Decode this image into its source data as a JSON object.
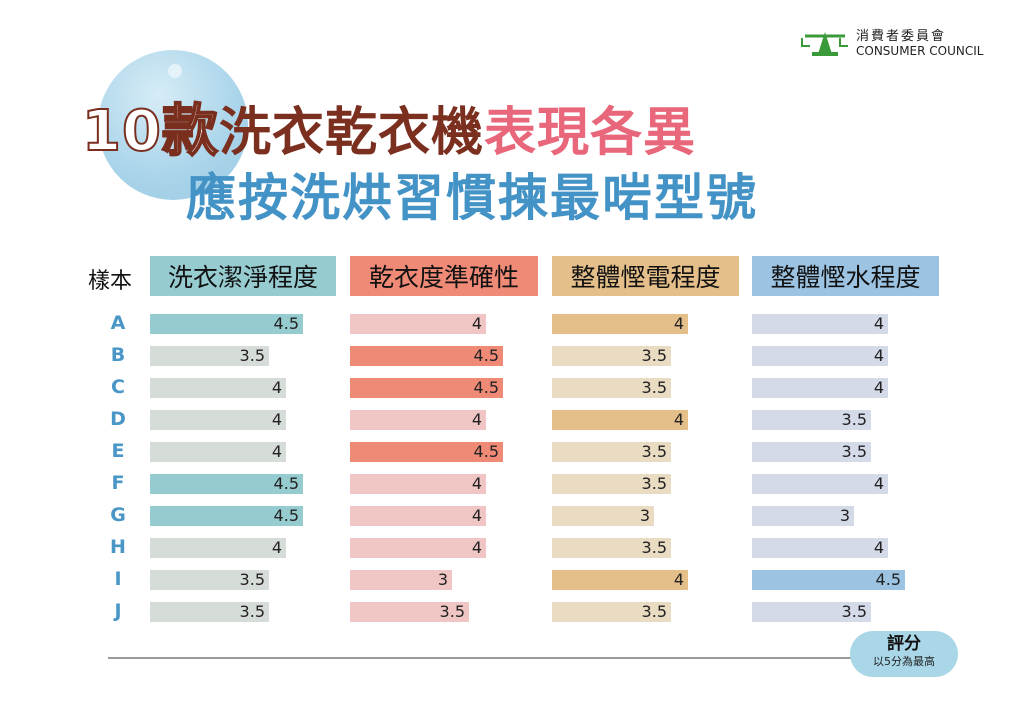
{
  "logo": {
    "zh": "消費者委員會",
    "en": "CONSUMER COUNCIL"
  },
  "title": {
    "num": "10款",
    "part1": "洗衣乾衣機",
    "part2": "表現各異",
    "line2": "應按洗烘習慣揀最啱型號"
  },
  "chart_data": {
    "type": "bar",
    "row_header": "樣本",
    "categories": [
      "A",
      "B",
      "C",
      "D",
      "E",
      "F",
      "G",
      "H",
      "I",
      "J"
    ],
    "series": [
      {
        "name": "洗衣潔淨程度",
        "values": [
          4.5,
          3.5,
          4,
          4,
          4,
          4.5,
          4.5,
          4,
          3.5,
          3.5
        ],
        "color": "#96cbd0",
        "light": "#d6ddd8"
      },
      {
        "name": "乾衣度準確性",
        "values": [
          4,
          4.5,
          4.5,
          4,
          4.5,
          4,
          4,
          4,
          3,
          3.5
        ],
        "color": "#ef8a77",
        "light": "#efc6c4"
      },
      {
        "name": "整體慳電程度",
        "values": [
          4,
          3.5,
          3.5,
          4,
          3.5,
          3.5,
          3,
          3.5,
          4,
          3.5
        ],
        "color": "#e5bf8a",
        "light": "#eadcc2"
      },
      {
        "name": "整體慳水程度",
        "values": [
          4,
          4,
          4,
          3.5,
          3.5,
          4,
          3,
          4,
          4.5,
          3.5
        ],
        "color": "#9cc3e2",
        "light": "#d5dae8"
      }
    ],
    "ylim": [
      0,
      5
    ],
    "axis_label": "評分",
    "axis_note": "以5分為最高"
  }
}
